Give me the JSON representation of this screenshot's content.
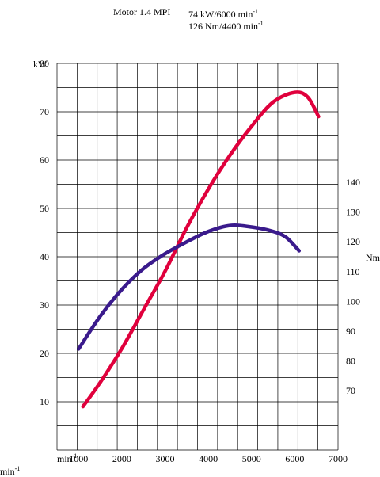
{
  "header": {
    "engine": "Motor 1.4 MPI",
    "power_value": "74 kW/6000 min",
    "power_sup": "-1",
    "torque_value": "126 Nm/4400 min",
    "torque_sup": "-1"
  },
  "chart_data": {
    "type": "line",
    "x_unit_label": "min",
    "x_unit_sup": "-1",
    "x_corner_label": "min",
    "x_corner_sup": "-1",
    "x_ticks": [
      1000,
      2000,
      3000,
      4000,
      5000,
      6000,
      7000
    ],
    "xlim": [
      500,
      7000
    ],
    "grid": true,
    "left_axis": {
      "unit": "kW",
      "ticks": [
        10,
        20,
        30,
        40,
        50,
        60,
        70,
        80
      ],
      "ylim": [
        0,
        80
      ]
    },
    "right_axis": {
      "unit": "Nm",
      "ticks": [
        70,
        80,
        90,
        100,
        110,
        120,
        130,
        140
      ],
      "ylim": [
        50,
        180
      ]
    },
    "series": [
      {
        "axis": "left",
        "color": "#e0003c",
        "x": [
          1100,
          1500,
          2000,
          2500,
          3000,
          3500,
          4000,
          4500,
          5000,
          5500,
          6000,
          6300,
          6550
        ],
        "y": [
          9,
          14,
          21,
          29,
          37,
          46,
          54,
          61,
          67,
          72,
          74,
          73,
          69
        ]
      },
      {
        "axis": "right",
        "color": "#3a1a8c",
        "x": [
          1000,
          1500,
          2000,
          2500,
          3000,
          3500,
          4000,
          4500,
          5000,
          5500,
          5800,
          6100
        ],
        "y": [
          84,
          95,
          104,
          111,
          116,
          120,
          123.5,
          125.5,
          125,
          123.5,
          121.5,
          117
        ]
      }
    ]
  }
}
